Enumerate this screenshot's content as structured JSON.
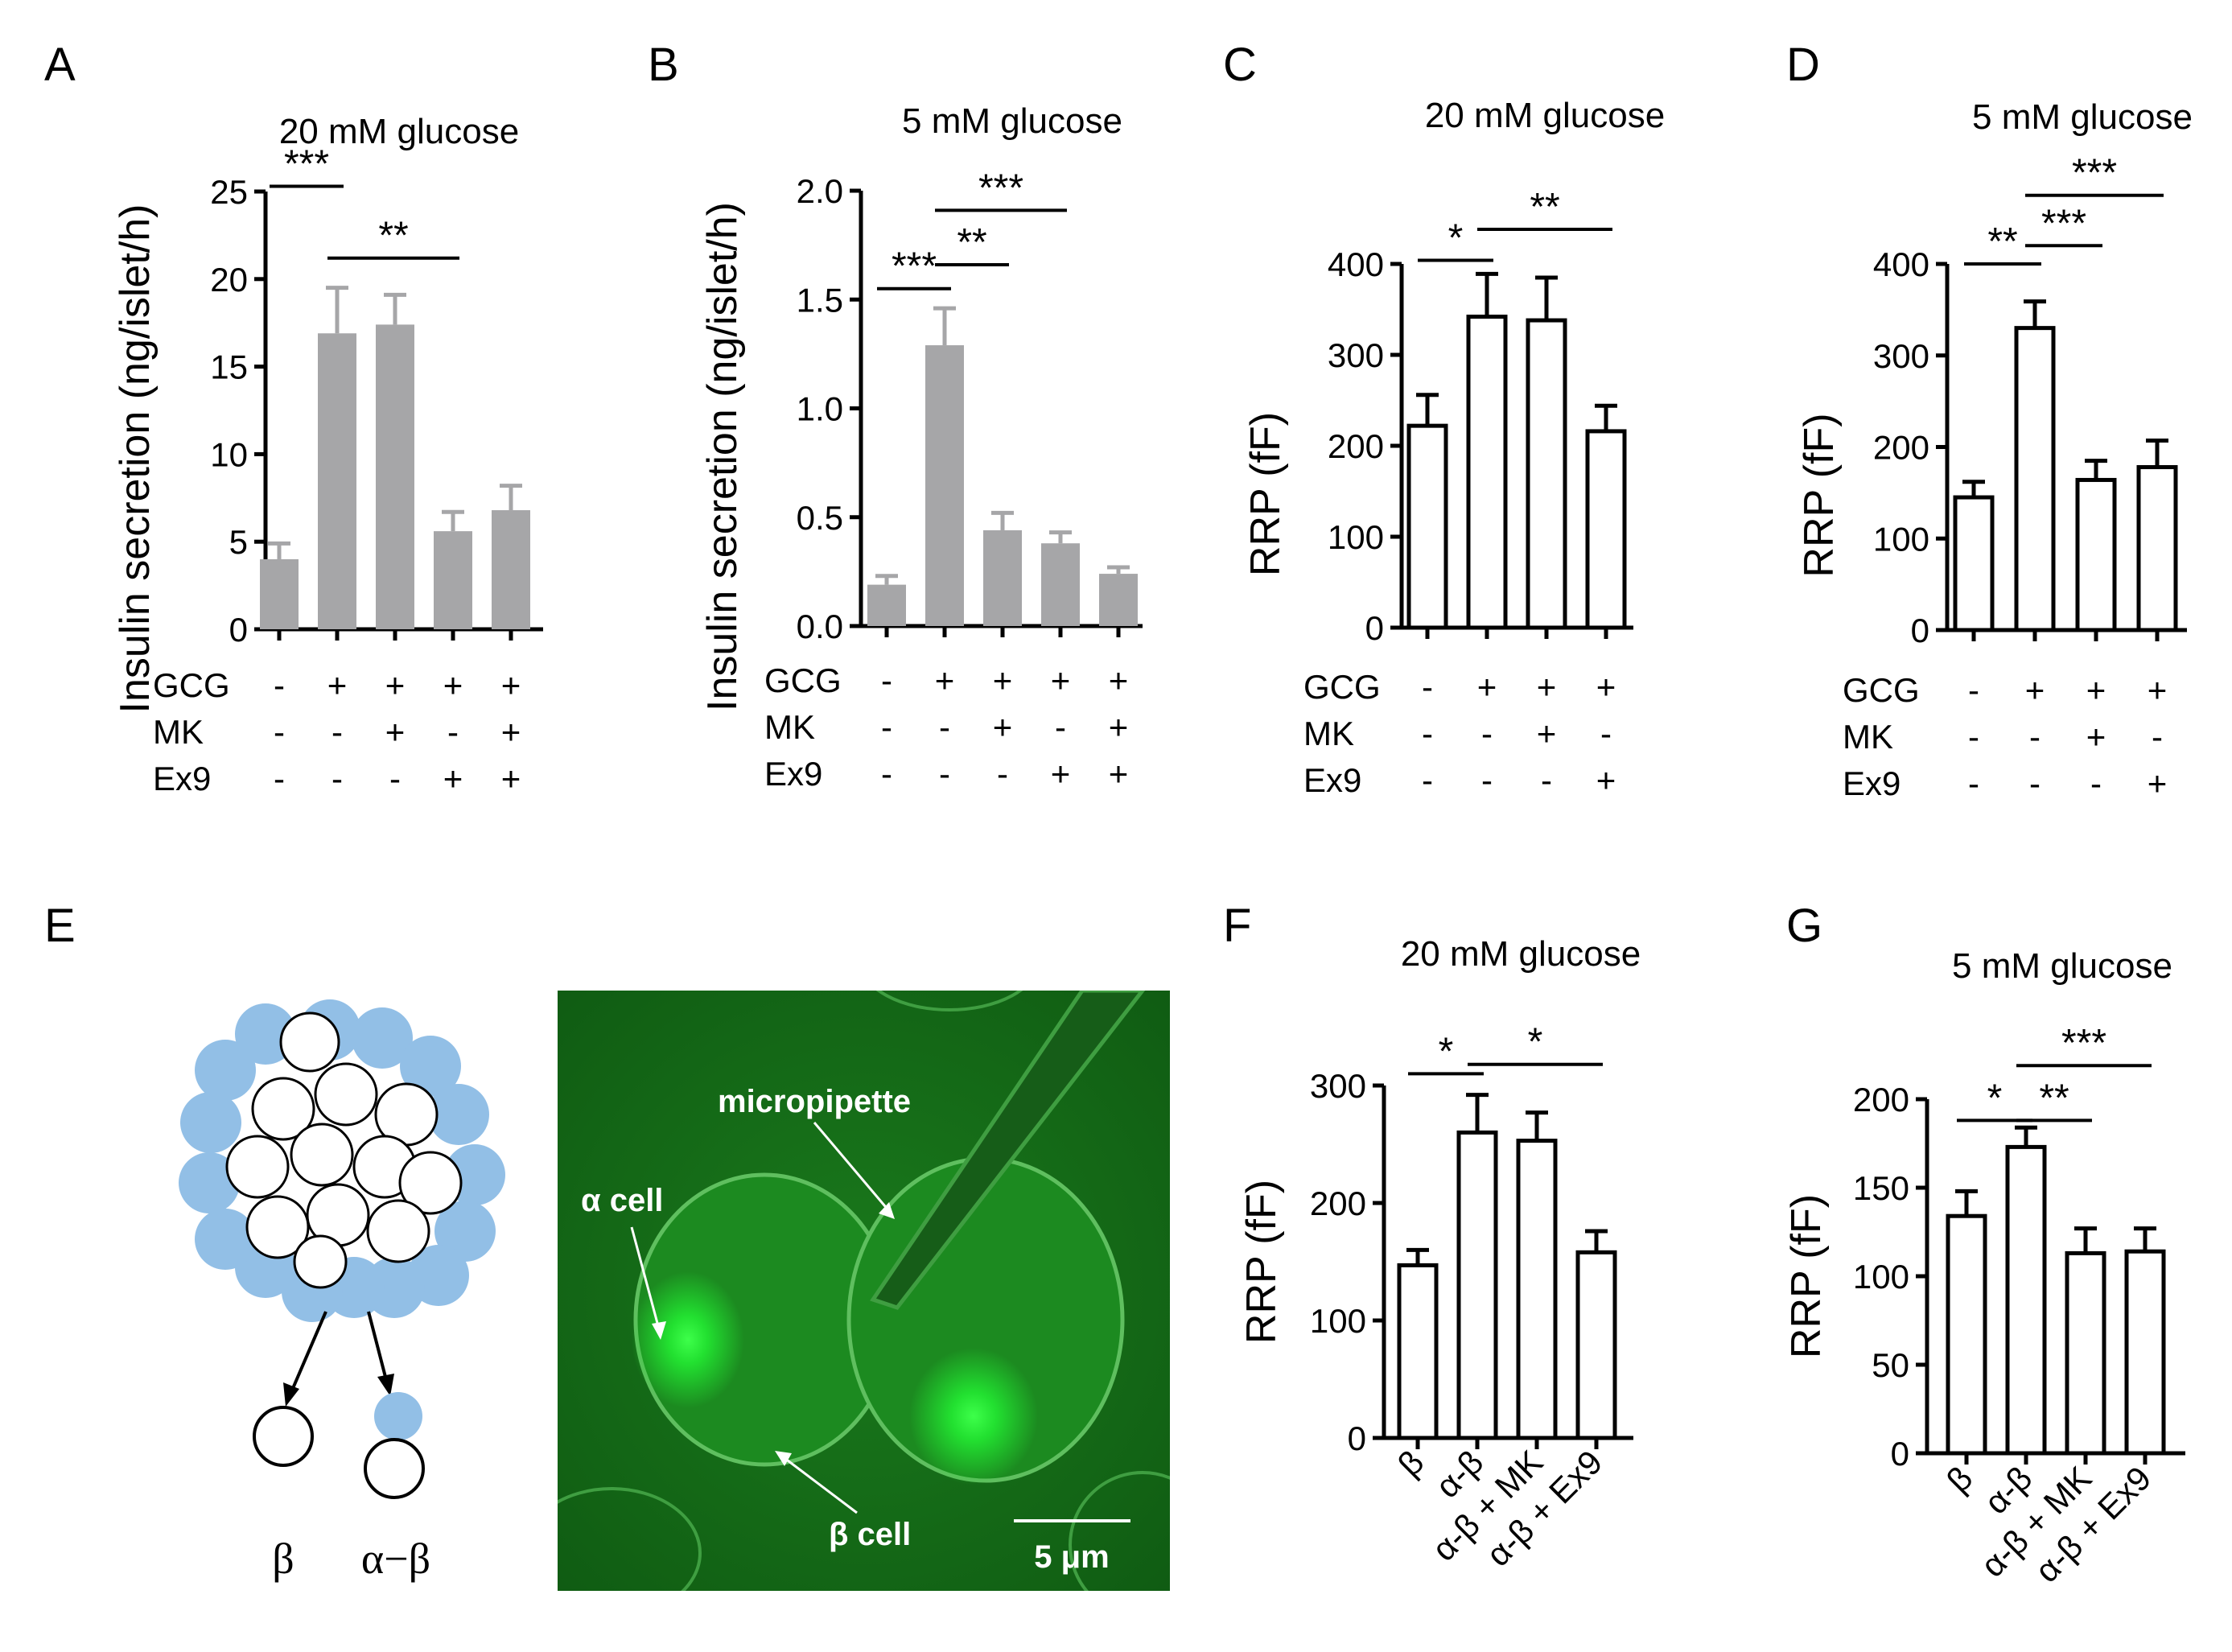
{
  "panels": {
    "A": {
      "letter": "A",
      "title": "20 mM glucose"
    },
    "B": {
      "letter": "B",
      "title": "5 mM glucose"
    },
    "C": {
      "letter": "C",
      "title": "20 mM glucose"
    },
    "D": {
      "letter": "D",
      "title": "5 mM glucose"
    },
    "E": {
      "letter": "E"
    },
    "F": {
      "letter": "F",
      "title": "20 mM glucose"
    },
    "G": {
      "letter": "G",
      "title": "5 mM glucose"
    }
  },
  "schematic": {
    "beta_label": "β",
    "alpha_beta_label": "α−β"
  },
  "micrograph": {
    "micropipette": "micropipette",
    "alpha_cell": "α cell",
    "beta_cell": "β cell",
    "scale_bar": "5 μm"
  },
  "chart_data": [
    {
      "id": "A",
      "type": "bar",
      "title": "20 mM glucose",
      "ylabel": "Insulin secretion (ng/islet/h)",
      "ylim": [
        0,
        25
      ],
      "yticks": [
        "0",
        "5",
        "10",
        "15",
        "20",
        "25"
      ],
      "fill": "#a6a6a8",
      "values": [
        4.0,
        16.9,
        17.4,
        5.6,
        6.8
      ],
      "errors": [
        0.9,
        2.6,
        1.7,
        1.1,
        1.4
      ],
      "conditions": [
        {
          "name": "GCG",
          "signs": [
            "-",
            "+",
            "+",
            "+",
            "+"
          ]
        },
        {
          "name": "MK",
          "signs": [
            "-",
            "-",
            "+",
            "-",
            "+"
          ]
        },
        {
          "name": "Ex9",
          "signs": [
            "-",
            "-",
            "-",
            "+",
            "+"
          ]
        }
      ],
      "significance": [
        {
          "from": 0,
          "to": 1,
          "label": "***",
          "level": 25.3
        },
        {
          "from": 1,
          "to": 3,
          "label": "**",
          "level": 21.2
        }
      ]
    },
    {
      "id": "B",
      "type": "bar",
      "title": "5 mM glucose",
      "ylabel": "Insulin secretion (ng/islet/h)",
      "ylim": [
        0,
        2.0
      ],
      "yticks": [
        "0.0",
        "0.5",
        "1.0",
        "1.5",
        "2.0"
      ],
      "fill": "#a6a6a8",
      "values": [
        0.19,
        1.29,
        0.44,
        0.38,
        0.24
      ],
      "errors": [
        0.04,
        0.17,
        0.08,
        0.05,
        0.03
      ],
      "conditions": [
        {
          "name": "GCG",
          "signs": [
            "-",
            "+",
            "+",
            "+",
            "+"
          ]
        },
        {
          "name": "MK",
          "signs": [
            "-",
            "-",
            "+",
            "-",
            "+"
          ]
        },
        {
          "name": "Ex9",
          "signs": [
            "-",
            "-",
            "-",
            "+",
            "+"
          ]
        }
      ],
      "significance": [
        {
          "from": 0,
          "to": 1,
          "label": "***",
          "level": 1.55
        },
        {
          "from": 1,
          "to": 2,
          "label": "**",
          "level": 1.66
        },
        {
          "from": 1,
          "to": 3,
          "label": "***",
          "level": 1.91
        }
      ]
    },
    {
      "id": "C",
      "type": "bar",
      "title": "20 mM glucose",
      "ylabel": "RRP (fF)",
      "ylim": [
        0,
        400
      ],
      "yticks": [
        "0",
        "100",
        "200",
        "300",
        "400"
      ],
      "fill": "#ffffff",
      "values": [
        222,
        342,
        338,
        216
      ],
      "errors": [
        34,
        47,
        47,
        28
      ],
      "conditions": [
        {
          "name": "GCG",
          "signs": [
            "-",
            "+",
            "+",
            "+"
          ]
        },
        {
          "name": "MK",
          "signs": [
            "-",
            "-",
            "+",
            "-"
          ]
        },
        {
          "name": "Ex9",
          "signs": [
            "-",
            "-",
            "-",
            "+"
          ]
        }
      ],
      "significance": [
        {
          "from": 0,
          "to": 1,
          "label": "*",
          "level": 404
        },
        {
          "from": 1,
          "to": 3,
          "label": "**",
          "level": 438
        }
      ]
    },
    {
      "id": "D",
      "type": "bar",
      "title": "5 mM glucose",
      "ylabel": "RRP (fF)",
      "ylim": [
        0,
        400
      ],
      "yticks": [
        "0",
        "100",
        "200",
        "300",
        "400"
      ],
      "fill": "#ffffff",
      "values": [
        145,
        330,
        164,
        178
      ],
      "errors": [
        17,
        29,
        21,
        29
      ],
      "conditions": [
        {
          "name": "GCG",
          "signs": [
            "-",
            "+",
            "+",
            "+"
          ]
        },
        {
          "name": "MK",
          "signs": [
            "-",
            "-",
            "+",
            "-"
          ]
        },
        {
          "name": "Ex9",
          "signs": [
            "-",
            "-",
            "-",
            "+"
          ]
        }
      ],
      "significance": [
        {
          "from": 0,
          "to": 1,
          "label": "**",
          "level": 400
        },
        {
          "from": 1,
          "to": 2,
          "label": "***",
          "level": 420
        },
        {
          "from": 1,
          "to": 3,
          "label": "***",
          "level": 475
        }
      ]
    },
    {
      "id": "F",
      "type": "bar",
      "title": "20 mM glucose",
      "ylabel": "RRP (fF)",
      "ylim": [
        0,
        300
      ],
      "yticks": [
        "0",
        "100",
        "200",
        "300"
      ],
      "fill": "#ffffff",
      "categories": [
        "β",
        "α-β",
        "α-β + MK",
        "α-β + Ex9"
      ],
      "values": [
        147,
        260,
        253,
        158
      ],
      "errors": [
        13,
        32,
        24,
        18
      ],
      "significance": [
        {
          "from": 0,
          "to": 1,
          "label": "*",
          "level": 310
        },
        {
          "from": 1,
          "to": 3,
          "label": "*",
          "level": 318
        }
      ]
    },
    {
      "id": "G",
      "type": "bar",
      "title": "5 mM glucose",
      "ylabel": "RRP (fF)",
      "ylim": [
        0,
        200
      ],
      "yticks": [
        "0",
        "50",
        "100",
        "150",
        "200"
      ],
      "fill": "#ffffff",
      "categories": [
        "β",
        "α-β",
        "α-β + MK",
        "α-β + Ex9"
      ],
      "values": [
        134,
        173,
        113,
        114
      ],
      "errors": [
        14,
        11,
        14,
        13
      ],
      "significance": [
        {
          "from": 0,
          "to": 1,
          "label": "*",
          "level": 188
        },
        {
          "from": 1,
          "to": 2,
          "label": "**",
          "level": 188
        },
        {
          "from": 1,
          "to": 3,
          "label": "***",
          "level": 219
        }
      ]
    }
  ]
}
